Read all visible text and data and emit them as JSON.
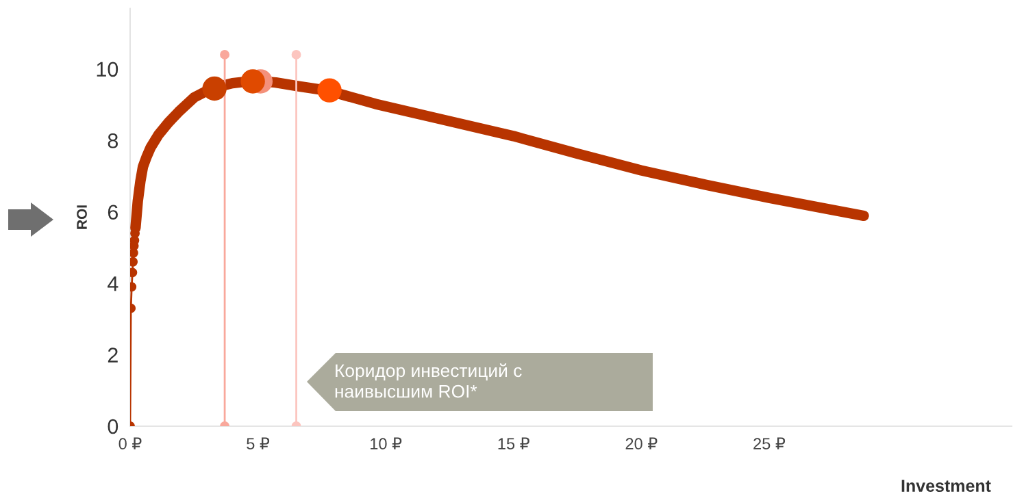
{
  "chart_data": {
    "type": "line",
    "ylabel": "ROI",
    "xlabel": "Investment",
    "xlim": [
      0,
      34.5
    ],
    "ylim": [
      0,
      11.7
    ],
    "xticks": [
      {
        "value": 0,
        "label": "0 ₽"
      },
      {
        "value": 5,
        "label": "5 ₽"
      },
      {
        "value": 10,
        "label": "10 ₽"
      },
      {
        "value": 15,
        "label": "15 ₽"
      },
      {
        "value": 20,
        "label": "20 ₽"
      },
      {
        "value": 25,
        "label": "25 ₽"
      }
    ],
    "yticks": [
      0,
      2,
      4,
      6,
      8,
      10
    ],
    "grid": false,
    "legend": false,
    "series": [
      {
        "marker": "circle",
        "color": "#b83400",
        "x": [
          0,
          0.03,
          0.06,
          0.09,
          0.11,
          0.13,
          0.15,
          0.17,
          0.19,
          0.21
        ],
        "values": [
          0,
          3.3,
          3.9,
          4.3,
          4.6,
          4.85,
          5.05,
          5.2,
          5.4,
          5.55
        ]
      },
      {
        "marker": "none",
        "color": "#b83400",
        "x": [
          0.21,
          0.3,
          0.4,
          0.5,
          0.65,
          0.8,
          1.1,
          1.5,
          1.9,
          2.5,
          3.2,
          4,
          4.87,
          5.7,
          6.55,
          7.75,
          9.6,
          12,
          15,
          17.5,
          20,
          22.5,
          25,
          27,
          28.7
        ],
        "values": [
          5.55,
          6.3,
          6.85,
          7.26,
          7.55,
          7.8,
          8.15,
          8.5,
          8.8,
          9.2,
          9.46,
          9.6,
          9.67,
          9.62,
          9.52,
          9.39,
          9.02,
          8.62,
          8.12,
          7.63,
          7.16,
          6.76,
          6.39,
          6.12,
          5.89
        ]
      },
      {
        "type": "scatter",
        "x": [
          3.3,
          5.1,
          4.8,
          7.8
        ],
        "values": [
          9.45,
          9.65,
          9.65,
          9.4
        ],
        "colors": [
          "#c94000",
          "#f4907a",
          "#e04a00",
          "#ff5000"
        ]
      },
      {
        "marker": "circle",
        "color": "#f9a89c",
        "x": [
          3.7,
          3.7
        ],
        "values": [
          0,
          10.4
        ]
      },
      {
        "marker": "circle",
        "color": "#fcc5bf",
        "x": [
          6.5,
          6.5
        ],
        "values": [
          0,
          10.4
        ]
      }
    ],
    "annotations": [
      "Коридор инвестиций с\nнаивысшим ROI*"
    ]
  }
}
